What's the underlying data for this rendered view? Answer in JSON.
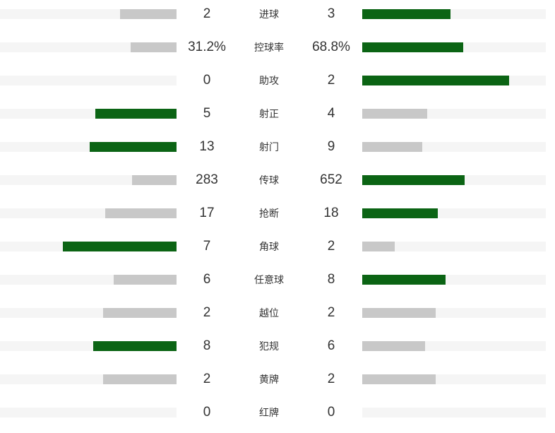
{
  "colors": {
    "leading": "#0b6414",
    "trailing": "#c8c8c8",
    "track": "#f5f5f5",
    "text": "#333333"
  },
  "stats": [
    {
      "label": "进球",
      "home": "2",
      "away": "3",
      "home_share": 0.32,
      "away_share": 0.48,
      "leader": "away"
    },
    {
      "label": "控球率",
      "home": "31.2%",
      "away": "68.8%",
      "home_share": 0.26,
      "away_share": 0.55,
      "leader": "away"
    },
    {
      "label": "助攻",
      "home": "0",
      "away": "2",
      "home_share": 0.0,
      "away_share": 0.8,
      "leader": "away"
    },
    {
      "label": "射正",
      "home": "5",
      "away": "4",
      "home_share": 0.46,
      "away_share": 0.355,
      "leader": "home"
    },
    {
      "label": "射门",
      "home": "13",
      "away": "9",
      "home_share": 0.49,
      "away_share": 0.327,
      "leader": "home"
    },
    {
      "label": "传球",
      "home": "283",
      "away": "652",
      "home_share": 0.25,
      "away_share": 0.558,
      "leader": "away"
    },
    {
      "label": "抢断",
      "home": "17",
      "away": "18",
      "home_share": 0.404,
      "away_share": 0.412,
      "leader": "away"
    },
    {
      "label": "角球",
      "home": "7",
      "away": "2",
      "home_share": 0.644,
      "away_share": 0.177,
      "leader": "home"
    },
    {
      "label": "任意球",
      "home": "6",
      "away": "8",
      "home_share": 0.356,
      "away_share": 0.454,
      "leader": "away"
    },
    {
      "label": "越位",
      "home": "2",
      "away": "2",
      "home_share": 0.416,
      "away_share": 0.4,
      "leader": "none"
    },
    {
      "label": "犯规",
      "home": "8",
      "away": "6",
      "home_share": 0.472,
      "away_share": 0.342,
      "leader": "home"
    },
    {
      "label": "黄牌",
      "home": "2",
      "away": "2",
      "home_share": 0.416,
      "away_share": 0.4,
      "leader": "none"
    },
    {
      "label": "红牌",
      "home": "0",
      "away": "0",
      "home_share": 0.0,
      "away_share": 0.0,
      "leader": "none"
    }
  ]
}
